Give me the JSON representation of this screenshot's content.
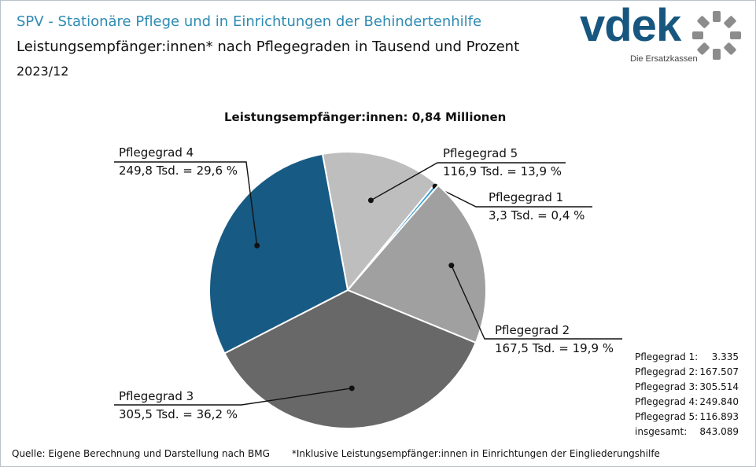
{
  "header": {
    "title": "SPV - Stationäre Pflege und in Einrichtungen der Behindertenhilfe",
    "subtitle": "Leistungsempfänger:innen*  nach Pflegegraden in Tausend und Prozent",
    "period": "2023/12"
  },
  "logo": {
    "text": "vdek",
    "tagline": "Die Ersatzkassen",
    "brand_color": "#17577f",
    "gear_color": "#8c8c8c"
  },
  "chart_data": {
    "type": "pie",
    "title": "Leistungsempfänger:innen:  0,84 Millionen",
    "slices": [
      {
        "name": "Pflegegrad 5",
        "value": 116.893,
        "label_line2": "116,9 Tsd. = 13,9 %",
        "color": "#bebebe",
        "side": "right"
      },
      {
        "name": "Pflegegrad 1",
        "value": 3.335,
        "label_line2": "3,3 Tsd. = 0,4 %",
        "color": "#3a9bd0",
        "side": "right"
      },
      {
        "name": "Pflegegrad 2",
        "value": 167.507,
        "label_line2": "167,5 Tsd. = 19,9 %",
        "color": "#a0a0a0",
        "side": "right"
      },
      {
        "name": "Pflegegrad 3",
        "value": 305.514,
        "label_line2": "305,5 Tsd. = 36,2 %",
        "color": "#686868",
        "side": "left"
      },
      {
        "name": "Pflegegrad 4",
        "value": 249.84,
        "label_line2": "249,8 Tsd. = 29,6 %",
        "color": "#175a84",
        "side": "left"
      }
    ]
  },
  "table": {
    "rows": [
      {
        "label": "Pflegegrad 1:",
        "value": "3.335"
      },
      {
        "label": "Pflegegrad 2:",
        "value": "167.507"
      },
      {
        "label": "Pflegegrad 3:",
        "value": "305.514"
      },
      {
        "label": "Pflegegrad 4:",
        "value": "249.840"
      },
      {
        "label": "Pflegegrad 5:",
        "value": "116.893"
      },
      {
        "label": "insgesamt:",
        "value": "843.089"
      }
    ]
  },
  "footer": {
    "source": "Quelle: Eigene Berechnung und Darstellung nach BMG",
    "note": "*Inklusive Leistungsempfänger:innen  in Einrichtungen der Eingliederungshilfe"
  }
}
